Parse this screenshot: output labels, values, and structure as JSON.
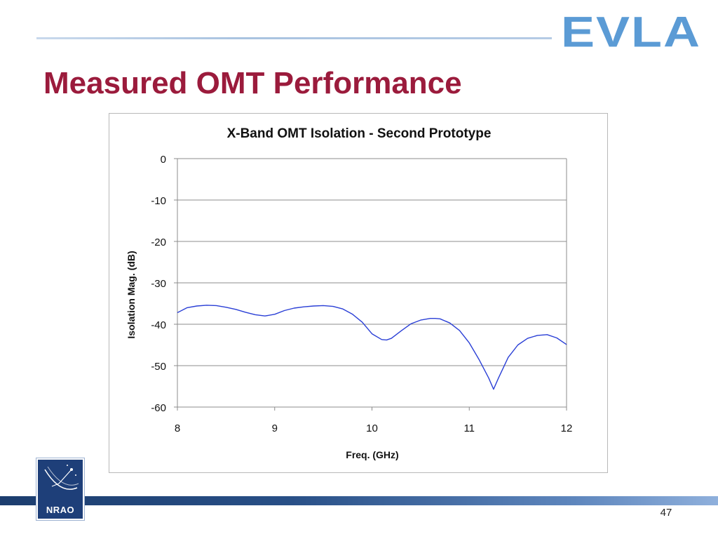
{
  "slide": {
    "title": "Measured OMT Performance",
    "logo_text": "EVLA",
    "footer_logo_text": "NRAO",
    "page_number": "47"
  },
  "colors": {
    "title": "#9b1b3c",
    "evla_logo": "#5b9bd5",
    "series_line": "#2a3fd6",
    "footer_bar": "#284f86"
  },
  "chart_data": {
    "type": "line",
    "title": "X-Band OMT Isolation - Second Prototype",
    "xlabel": "Freq. (GHz)",
    "ylabel": "Isolation Mag. (dB)",
    "xlim": [
      8,
      12
    ],
    "ylim": [
      -60,
      0
    ],
    "xticks": [
      8,
      9,
      10,
      11,
      12
    ],
    "yticks": [
      0,
      -10,
      -20,
      -30,
      -40,
      -50,
      -60
    ],
    "grid": "horizontal",
    "legend": "none",
    "series": [
      {
        "x": [
          8.0,
          8.1,
          8.2,
          8.3,
          8.4,
          8.5,
          8.6,
          8.7,
          8.8,
          8.9,
          9.0,
          9.1,
          9.2,
          9.3,
          9.4,
          9.5,
          9.6,
          9.7,
          9.8,
          9.9,
          10.0,
          10.1,
          10.15,
          10.2,
          10.3,
          10.4,
          10.5,
          10.6,
          10.65,
          10.7,
          10.8,
          10.9,
          11.0,
          11.1,
          11.2,
          11.25,
          11.3,
          11.4,
          11.5,
          11.6,
          11.7,
          11.8,
          11.9,
          12.0
        ],
        "y": [
          -37.2,
          -36.0,
          -35.6,
          -35.4,
          -35.5,
          -35.9,
          -36.4,
          -37.1,
          -37.7,
          -38.0,
          -37.6,
          -36.7,
          -36.1,
          -35.8,
          -35.6,
          -35.5,
          -35.7,
          -36.3,
          -37.6,
          -39.5,
          -42.3,
          -43.7,
          -43.8,
          -43.4,
          -41.6,
          -39.9,
          -39.0,
          -38.6,
          -38.6,
          -38.7,
          -39.7,
          -41.5,
          -44.5,
          -48.5,
          -53.0,
          -55.7,
          -53.0,
          -48.0,
          -45.0,
          -43.4,
          -42.7,
          -42.5,
          -43.3,
          -44.9
        ]
      }
    ]
  }
}
